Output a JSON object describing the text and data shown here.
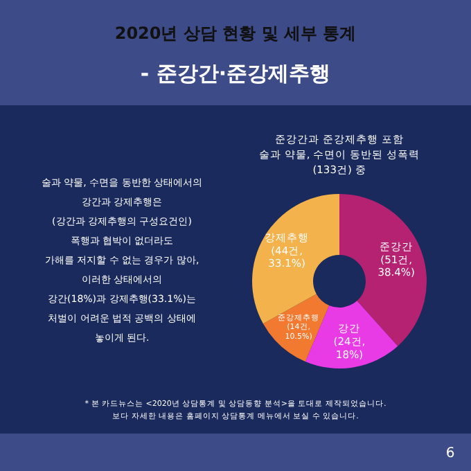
{
  "chart_data": {
    "type": "donut",
    "title": "2020년 상담 현황 및 세부 통계",
    "subtitle": "- 준강간·준강제추행",
    "categories": [
      "준강간",
      "강간",
      "준강제추행",
      "강제추행"
    ],
    "values": [
      51,
      24,
      14,
      44
    ],
    "value_labels": [
      "(51건,\n38.4%)",
      "(24건,\n18%)",
      "(14건,\n10.5%)",
      "(44건,\n33.1%)"
    ],
    "colors": [
      "#b52272",
      "#e83be6",
      "#f27a30",
      "#f4b24c"
    ],
    "annotations": [
      "준강간과 준강제추행 포함\n술과 약물, 수면이 동반된 성폭력\n(133건) 중",
      "술과 약물, 수면을 동반한 상태에서의\n강간과 강제추행은\n(강간과 강제추행의 구성요건인)\n폭행과 협박이 없더라도\n가해를 저지할 수 없는 경우가 많아,\n이러한 상태에서의\n강간(18%)과 강제추행(33.1%)는\n처벌이 어려운 법적 공백의 상태에\n놓이게 된다.",
      "* 본 카드뉴스는 <2020년 상담통계 및 상담동향 분석>을 토대로 제작되었습니다.\n보다 자세한 내용은 홈페이지 상담통계 메뉴에서 보실 수 있습니다.",
      "6"
    ]
  }
}
